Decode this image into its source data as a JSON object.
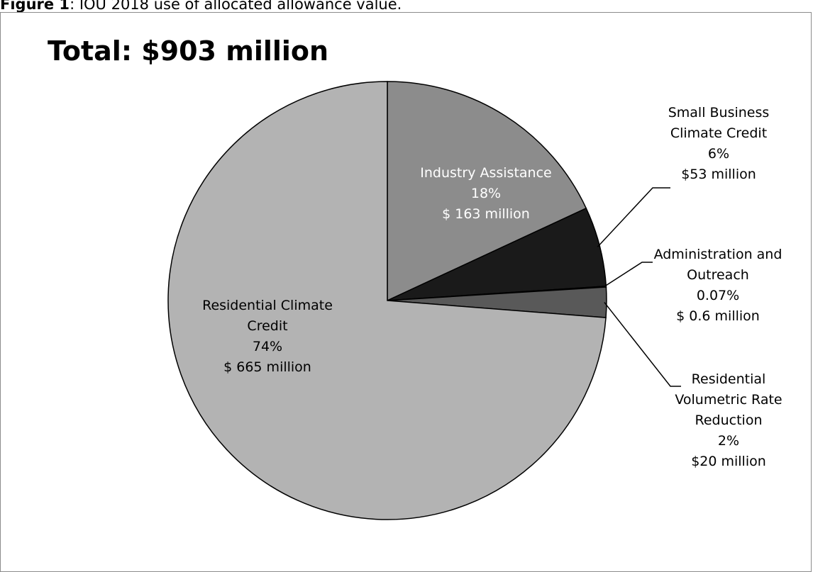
{
  "caption": {
    "prefix": "Figure 1",
    "text": ": IOU 2018 use of allocated allowance value."
  },
  "chart_data": {
    "type": "pie",
    "title": "Total: $903 million",
    "start_angle_deg": 90,
    "direction": "clockwise",
    "slices": [
      {
        "name": "Industry Assistance",
        "percent_label": "18%",
        "amount_label": "$ 163 million",
        "value": 163,
        "fill": "#8c8c8c",
        "text_color": "#ffffff",
        "label_lines": [
          "Industry Assistance"
        ]
      },
      {
        "name": "Small Business Climate Credit",
        "percent_label": "6%",
        "amount_label": "$53 million",
        "value": 53,
        "fill": "#1a1a1a",
        "text_color": "#000000",
        "label_lines": [
          "Small Business",
          "Climate Credit"
        ]
      },
      {
        "name": "Administration and Outreach",
        "percent_label": "0.07%",
        "amount_label": "$ 0.6 million",
        "value": 0.6,
        "fill": "#e0e0e0",
        "text_color": "#000000",
        "label_lines": [
          "Administration and",
          "Outreach"
        ]
      },
      {
        "name": "Residential Volumetric Rate Reduction",
        "percent_label": "2%",
        "amount_label": "$20 million",
        "value": 20,
        "fill": "#595959",
        "text_color": "#000000",
        "label_lines": [
          "Residential",
          "Volumetric Rate",
          "Reduction"
        ]
      },
      {
        "name": "Residential Climate Credit",
        "percent_label": "74%",
        "amount_label": "$ 665 million",
        "value": 665,
        "fill": "#b3b3b3",
        "text_color": "#000000",
        "label_lines": [
          "Residential Climate",
          "Credit"
        ]
      }
    ]
  }
}
